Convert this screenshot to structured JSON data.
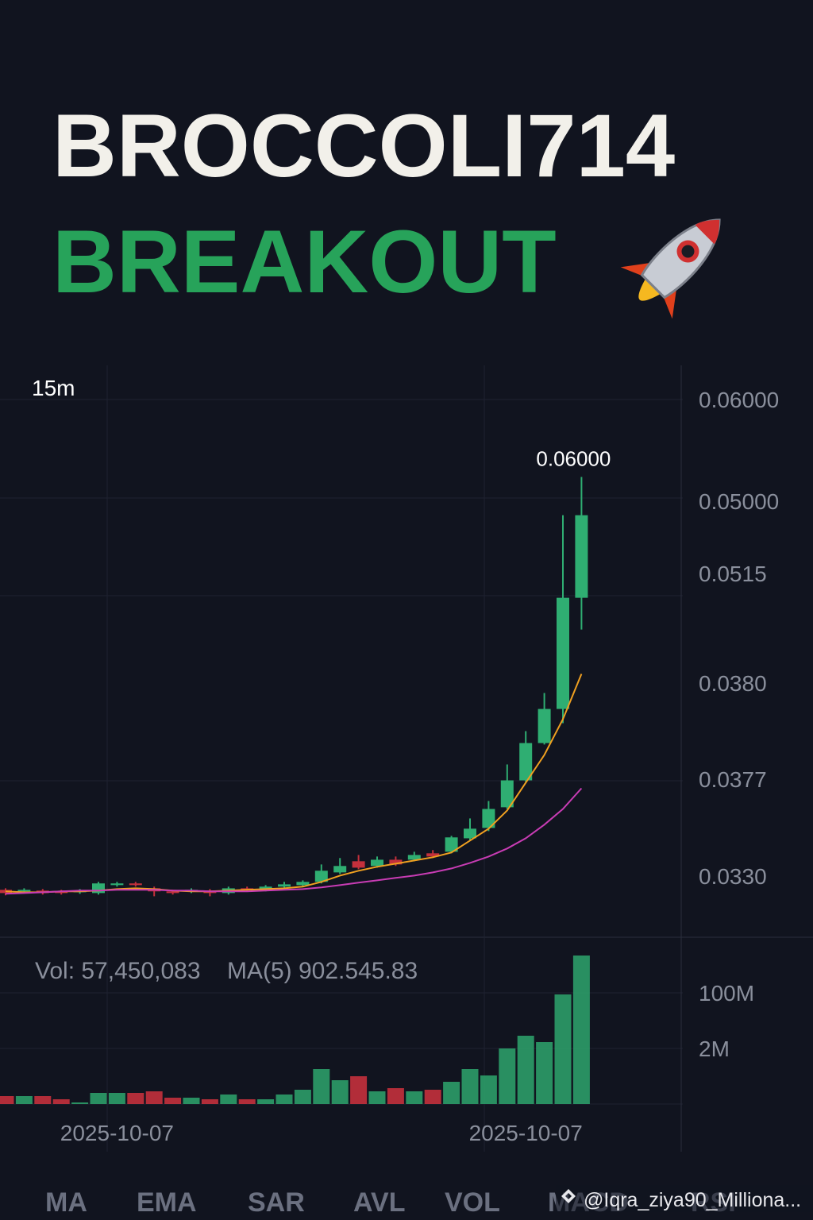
{
  "header": {
    "title": "BROCCOLI714",
    "subtitle": "BREAKOUT"
  },
  "chart_data": {
    "type": "candlestick",
    "interval": "15m",
    "categories": [
      null,
      null,
      null,
      null,
      null,
      null,
      "2025-10-07",
      null,
      null,
      null,
      null,
      null,
      null,
      null,
      null,
      null,
      null,
      null,
      null,
      null,
      null,
      null,
      null,
      null,
      null,
      null,
      null,
      null,
      "2025-10-07",
      null,
      null,
      null
    ],
    "open": [
      0.033,
      0.0329,
      0.03295,
      0.0329,
      0.03284,
      0.03279,
      0.03331,
      0.03342,
      0.0331,
      0.0329,
      0.0329,
      0.03295,
      0.03279,
      0.0331,
      0.033,
      0.03321,
      0.03331,
      0.03352,
      0.03414,
      0.03487,
      0.03456,
      0.03497,
      0.03497,
      0.03539,
      0.03549,
      0.03637,
      0.03705,
      0.0384,
      0.04016,
      0.0426,
      0.04483,
      0.0521
    ],
    "high": [
      0.0331,
      0.0331,
      0.03305,
      0.033,
      0.03305,
      0.03352,
      0.03352,
      0.03352,
      0.03321,
      0.033,
      0.0331,
      0.03305,
      0.03321,
      0.03321,
      0.03331,
      0.03352,
      0.03362,
      0.03466,
      0.03508,
      0.03528,
      0.03518,
      0.03518,
      0.03549,
      0.0356,
      0.03653,
      0.03767,
      0.03881,
      0.0412,
      0.04338,
      0.04587,
      0.0575,
      0.06
    ],
    "low": [
      0.03264,
      0.03279,
      0.03269,
      0.03269,
      0.03274,
      0.03269,
      0.03321,
      0.03321,
      0.03258,
      0.03269,
      0.03279,
      0.03258,
      0.03269,
      0.0329,
      0.0329,
      0.0331,
      0.03321,
      0.03342,
      0.03404,
      0.03435,
      0.03445,
      0.03456,
      0.03487,
      0.03508,
      0.03539,
      0.03622,
      0.03684,
      0.03829,
      0.04006,
      0.0425,
      0.0439,
      0.05002
    ],
    "close": [
      0.03279,
      0.033,
      0.03279,
      0.03279,
      0.03295,
      0.03342,
      0.03342,
      0.03331,
      0.0329,
      0.03279,
      0.033,
      0.03279,
      0.0331,
      0.033,
      0.03321,
      0.03336,
      0.03352,
      0.03425,
      0.03456,
      0.03445,
      0.03497,
      0.03466,
      0.03528,
      0.03518,
      0.03643,
      0.037,
      0.03829,
      0.04016,
      0.0426,
      0.04483,
      0.0521,
      0.0575
    ],
    "up_color": "#2fae72",
    "down_color": "#c4303c",
    "ylim": [
      0.0299,
      0.0673
    ],
    "price_axis_labels": [
      "0.06000",
      "0.05000",
      "0.0515",
      "0.0380",
      "0.0377",
      "0.0330"
    ],
    "peak_label": "0.06000",
    "moving_averages": [
      {
        "color": "#f0a020",
        "values": [
          0.0329,
          0.03284,
          0.03284,
          0.0329,
          0.0329,
          0.03295,
          0.03305,
          0.0331,
          0.03305,
          0.03295,
          0.0329,
          0.0329,
          0.03295,
          0.033,
          0.03305,
          0.0331,
          0.03321,
          0.03352,
          0.03393,
          0.03425,
          0.03451,
          0.03471,
          0.03492,
          0.03513,
          0.03544,
          0.03622,
          0.037,
          0.03819,
          0.04001,
          0.04182,
          0.04416,
          0.04712
        ]
      },
      {
        "color": "#c83cb4",
        "values": [
          0.03274,
          0.03279,
          0.03284,
          0.0329,
          0.03295,
          0.03295,
          0.033,
          0.033,
          0.033,
          0.03295,
          0.03295,
          0.0329,
          0.0329,
          0.0329,
          0.03295,
          0.033,
          0.03305,
          0.03316,
          0.03331,
          0.03347,
          0.03362,
          0.03378,
          0.03393,
          0.03414,
          0.0344,
          0.03476,
          0.03518,
          0.0357,
          0.03637,
          0.03726,
          0.03829,
          0.03964
        ]
      }
    ],
    "volume": {
      "values": [
        7140000,
        7140000,
        7140000,
        4290000,
        1430000,
        10000000,
        10000000,
        10000000,
        11430000,
        5710000,
        5710000,
        4290000,
        8570000,
        4290000,
        4290000,
        8570000,
        12860000,
        31430000,
        21430000,
        25000000,
        11430000,
        14290000,
        11430000,
        12860000,
        20000000,
        31430000,
        25710000,
        50000000,
        61430000,
        55710000,
        98570000,
        133570000
      ],
      "ylim": [
        0,
        150000000
      ],
      "axis_labels": [
        "100M",
        "2M"
      ],
      "summary": "Vol: 57,450,083",
      "ma_label": "MA(5) 902.545.83"
    }
  },
  "tabs": [
    "MA",
    "EMA",
    "SAR",
    "AVL",
    "VOL",
    "MACD",
    "RSI"
  ],
  "watermark": "@Iqra_ziya90_Milliona..."
}
